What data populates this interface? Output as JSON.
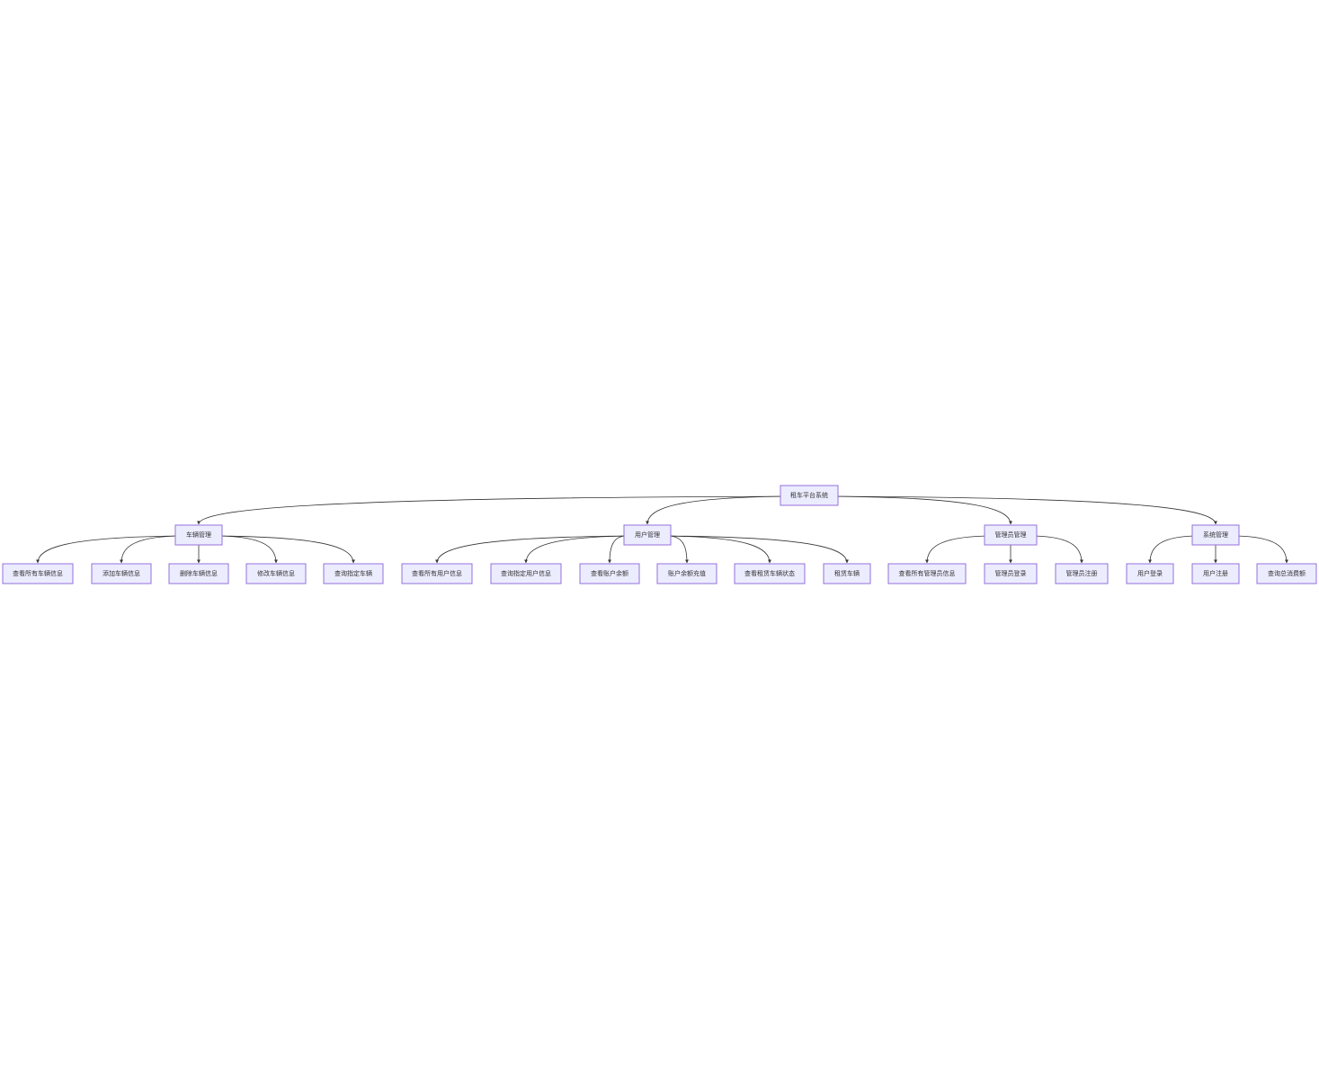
{
  "diagram": {
    "type": "tree",
    "root": {
      "id": "root",
      "label": "租车平台系统"
    },
    "groups": [
      {
        "id": "car",
        "label": "车辆管理",
        "children": [
          {
            "id": "car-1",
            "label": "查看所有车辆信息"
          },
          {
            "id": "car-2",
            "label": "添加车辆信息"
          },
          {
            "id": "car-3",
            "label": "删除车辆信息"
          },
          {
            "id": "car-4",
            "label": "修改车辆信息"
          },
          {
            "id": "car-5",
            "label": "查询指定车辆"
          }
        ]
      },
      {
        "id": "user",
        "label": "用户管理",
        "children": [
          {
            "id": "user-1",
            "label": "查看所有用户信息"
          },
          {
            "id": "user-2",
            "label": "查询指定用户信息"
          },
          {
            "id": "user-3",
            "label": "查看账户余额"
          },
          {
            "id": "user-4",
            "label": "账户余额充值"
          },
          {
            "id": "user-5",
            "label": "查看租赁车辆状态"
          },
          {
            "id": "user-6",
            "label": "租赁车辆"
          }
        ]
      },
      {
        "id": "admin",
        "label": "管理员管理",
        "children": [
          {
            "id": "admin-1",
            "label": "查看所有管理员信息"
          },
          {
            "id": "admin-2",
            "label": "管理员登录"
          },
          {
            "id": "admin-3",
            "label": "管理员注册"
          }
        ]
      },
      {
        "id": "sys",
        "label": "系统管理",
        "children": [
          {
            "id": "sys-1",
            "label": "用户登录"
          },
          {
            "id": "sys-2",
            "label": "用户注册"
          },
          {
            "id": "sys-3",
            "label": "查询总消费额"
          }
        ]
      }
    ]
  },
  "colors": {
    "node_fill": "#ececff",
    "node_stroke": "#9370db",
    "edge": "#333333",
    "text": "#333333",
    "background": "#ffffff"
  }
}
